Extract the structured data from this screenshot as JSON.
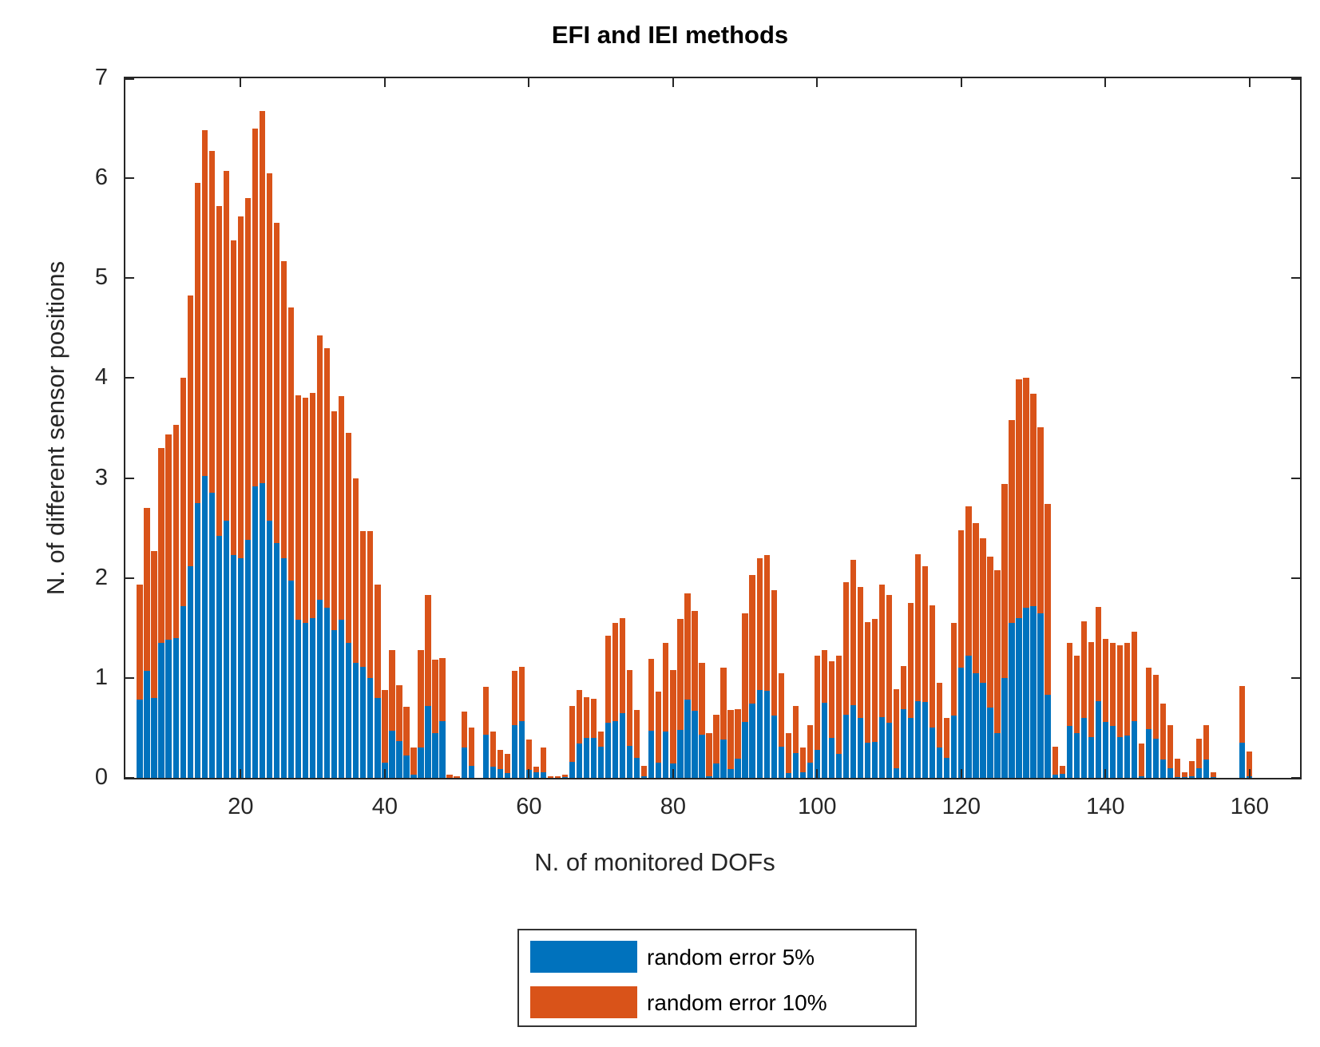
{
  "title": "EFI and IEI methods",
  "xlabel": "N. of monitored DOFs",
  "ylabel": "N. of different sensor positions",
  "colors": {
    "blue": "#0072BD",
    "orange": "#D95319",
    "axis": "#262626"
  },
  "legend": [
    {
      "label": "random error 5%",
      "color": "#0072BD"
    },
    {
      "label": "random error 10%",
      "color": "#D95319"
    }
  ],
  "chart_data": {
    "type": "bar",
    "stacked": true,
    "grid": false,
    "legend_position": "below plot, centered",
    "title": "EFI and IEI methods",
    "xlabel": "N. of monitored DOFs",
    "ylabel": "N. of different sensor positions",
    "xlim": [
      4,
      167
    ],
    "ylim": [
      0,
      7
    ],
    "xticks": [
      20,
      40,
      60,
      80,
      100,
      120,
      140,
      160
    ],
    "yticks": [
      0,
      1,
      2,
      3,
      4,
      5,
      6,
      7
    ],
    "x_start": 6,
    "x_step": 1,
    "series": [
      {
        "name": "random error 5%",
        "color": "#0072BD",
        "values": [
          0.78,
          1.07,
          0.8,
          1.35,
          1.38,
          1.4,
          1.72,
          2.12,
          2.75,
          3.02,
          2.85,
          2.42,
          2.57,
          2.23,
          2.2,
          2.38,
          2.92,
          2.95,
          2.57,
          2.35,
          2.2,
          1.97,
          1.58,
          1.55,
          1.6,
          1.78,
          1.7,
          1.48,
          1.58,
          1.35,
          1.15,
          1.11,
          1.0,
          0.8,
          0.15,
          0.47,
          0.37,
          0.22,
          0.03,
          0.3,
          0.72,
          0.45,
          0.57,
          0.0,
          0.0,
          0.3,
          0.12,
          0.0,
          0.43,
          0.11,
          0.09,
          0.05,
          0.53,
          0.57,
          0.08,
          0.06,
          0.06,
          0.0,
          0.0,
          0.01,
          0.16,
          0.34,
          0.4,
          0.4,
          0.31,
          0.55,
          0.57,
          0.65,
          0.32,
          0.2,
          0.02,
          0.47,
          0.15,
          0.46,
          0.14,
          0.48,
          0.78,
          0.67,
          0.43,
          0.02,
          0.14,
          0.38,
          0.09,
          0.19,
          0.56,
          0.74,
          0.88,
          0.87,
          0.62,
          0.31,
          0.05,
          0.25,
          0.06,
          0.15,
          0.28,
          0.75,
          0.4,
          0.24,
          0.63,
          0.73,
          0.6,
          0.35,
          0.36,
          0.61,
          0.55,
          0.1,
          0.69,
          0.6,
          0.77,
          0.76,
          0.5,
          0.3,
          0.2,
          0.62,
          1.1,
          1.22,
          1.05,
          0.95,
          0.7,
          0.45,
          1.0,
          1.55,
          1.6,
          1.7,
          1.72,
          1.65,
          0.83,
          0.03,
          0.04,
          0.52,
          0.45,
          0.6,
          0.41,
          0.77,
          0.56,
          0.52,
          0.41,
          0.42,
          0.57,
          0.02,
          0.49,
          0.39,
          0.18,
          0.1,
          0.01,
          0.01,
          0.02,
          0.1,
          0.18,
          0.01,
          0.0,
          0.0,
          0.0,
          0.35,
          0.02
        ]
      },
      {
        "name": "random error 10%",
        "color": "#D95319",
        "values": [
          1.15,
          1.63,
          1.47,
          1.95,
          2.06,
          2.13,
          2.28,
          2.71,
          3.2,
          3.46,
          3.42,
          3.3,
          3.5,
          3.15,
          3.42,
          3.42,
          3.58,
          3.72,
          3.48,
          3.2,
          2.97,
          2.74,
          2.25,
          2.25,
          2.25,
          2.65,
          2.6,
          2.19,
          2.24,
          2.1,
          1.85,
          1.36,
          1.47,
          1.13,
          0.73,
          0.81,
          0.56,
          0.49,
          0.27,
          0.98,
          1.11,
          0.73,
          0.63,
          0.03,
          0.02,
          0.36,
          0.38,
          0.0,
          0.48,
          0.35,
          0.19,
          0.19,
          0.54,
          0.54,
          0.3,
          0.05,
          0.24,
          0.02,
          0.02,
          0.02,
          0.56,
          0.54,
          0.41,
          0.39,
          0.15,
          0.87,
          0.98,
          0.95,
          0.76,
          0.48,
          0.1,
          0.72,
          0.71,
          0.89,
          0.94,
          1.11,
          1.07,
          1.0,
          0.72,
          0.43,
          0.49,
          0.72,
          0.59,
          0.5,
          1.09,
          1.29,
          1.32,
          1.36,
          1.26,
          0.74,
          0.4,
          0.47,
          0.24,
          0.38,
          0.94,
          0.53,
          0.77,
          0.98,
          1.33,
          1.45,
          1.31,
          1.21,
          1.23,
          1.32,
          1.28,
          0.79,
          0.43,
          1.15,
          1.47,
          1.36,
          1.23,
          0.65,
          0.4,
          0.93,
          1.38,
          1.5,
          1.5,
          1.45,
          1.51,
          1.63,
          1.94,
          2.03,
          2.39,
          2.3,
          2.12,
          1.86,
          1.91,
          0.28,
          0.08,
          0.83,
          0.77,
          0.97,
          0.95,
          0.94,
          0.83,
          0.83,
          0.92,
          0.93,
          0.89,
          0.32,
          0.61,
          0.64,
          0.56,
          0.43,
          0.18,
          0.05,
          0.15,
          0.29,
          0.35,
          0.05,
          0.0,
          0.0,
          0.0,
          0.57,
          0.24
        ]
      }
    ]
  }
}
